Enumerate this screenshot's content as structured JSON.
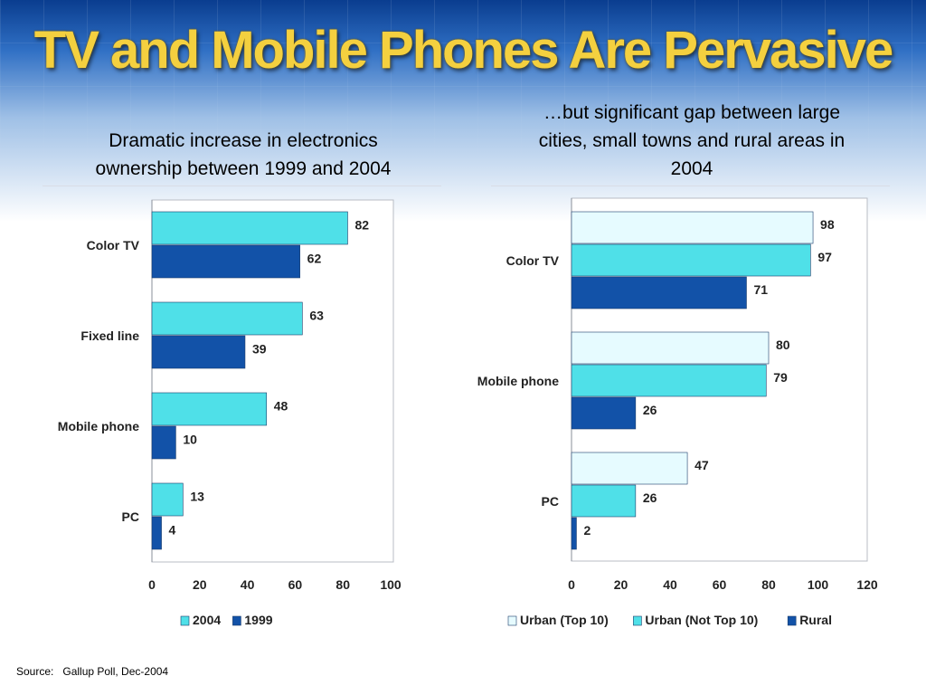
{
  "title": "TV and Mobile Phones Are Pervasive",
  "left": {
    "subtitle_line1": "Dramatic increase in electronics",
    "subtitle_line2": "ownership between 1999 and 2004"
  },
  "right": {
    "subtitle_line1": "…but significant gap between large",
    "subtitle_line2": "cities, small towns and rural areas in",
    "subtitle_line3": "2004"
  },
  "source": {
    "label": "Source:",
    "text": "Gallup Poll, Dec-2004"
  },
  "colors": {
    "light": "#e6fbff",
    "cyan": "#4fe0e8",
    "blue": "#1252a8"
  },
  "chart_data": [
    {
      "type": "bar",
      "orientation": "horizontal",
      "categories": [
        "Color TV",
        "Fixed line",
        "Mobile phone",
        "PC"
      ],
      "series": [
        {
          "name": "2004",
          "values": [
            82,
            63,
            48,
            13
          ],
          "color": "#4fe0e8"
        },
        {
          "name": "1999",
          "values": [
            62,
            39,
            10,
            4
          ],
          "color": "#1252a8"
        }
      ],
      "xlim": [
        0,
        100
      ],
      "xticks": [
        0,
        20,
        40,
        60,
        80,
        100
      ],
      "legend": "bottom",
      "data_labels": true
    },
    {
      "type": "bar",
      "orientation": "horizontal",
      "categories": [
        "Color TV",
        "Mobile phone",
        "PC"
      ],
      "series": [
        {
          "name": "Urban (Top 10)",
          "values": [
            98,
            80,
            47
          ],
          "color": "#e6fbff"
        },
        {
          "name": "Urban (Not Top 10)",
          "values": [
            97,
            79,
            26
          ],
          "color": "#4fe0e8"
        },
        {
          "name": "Rural",
          "values": [
            71,
            26,
            2
          ],
          "color": "#1252a8"
        }
      ],
      "xlim": [
        0,
        120
      ],
      "xticks": [
        0,
        20,
        40,
        60,
        80,
        100,
        120
      ],
      "legend": "bottom",
      "data_labels": true
    }
  ]
}
